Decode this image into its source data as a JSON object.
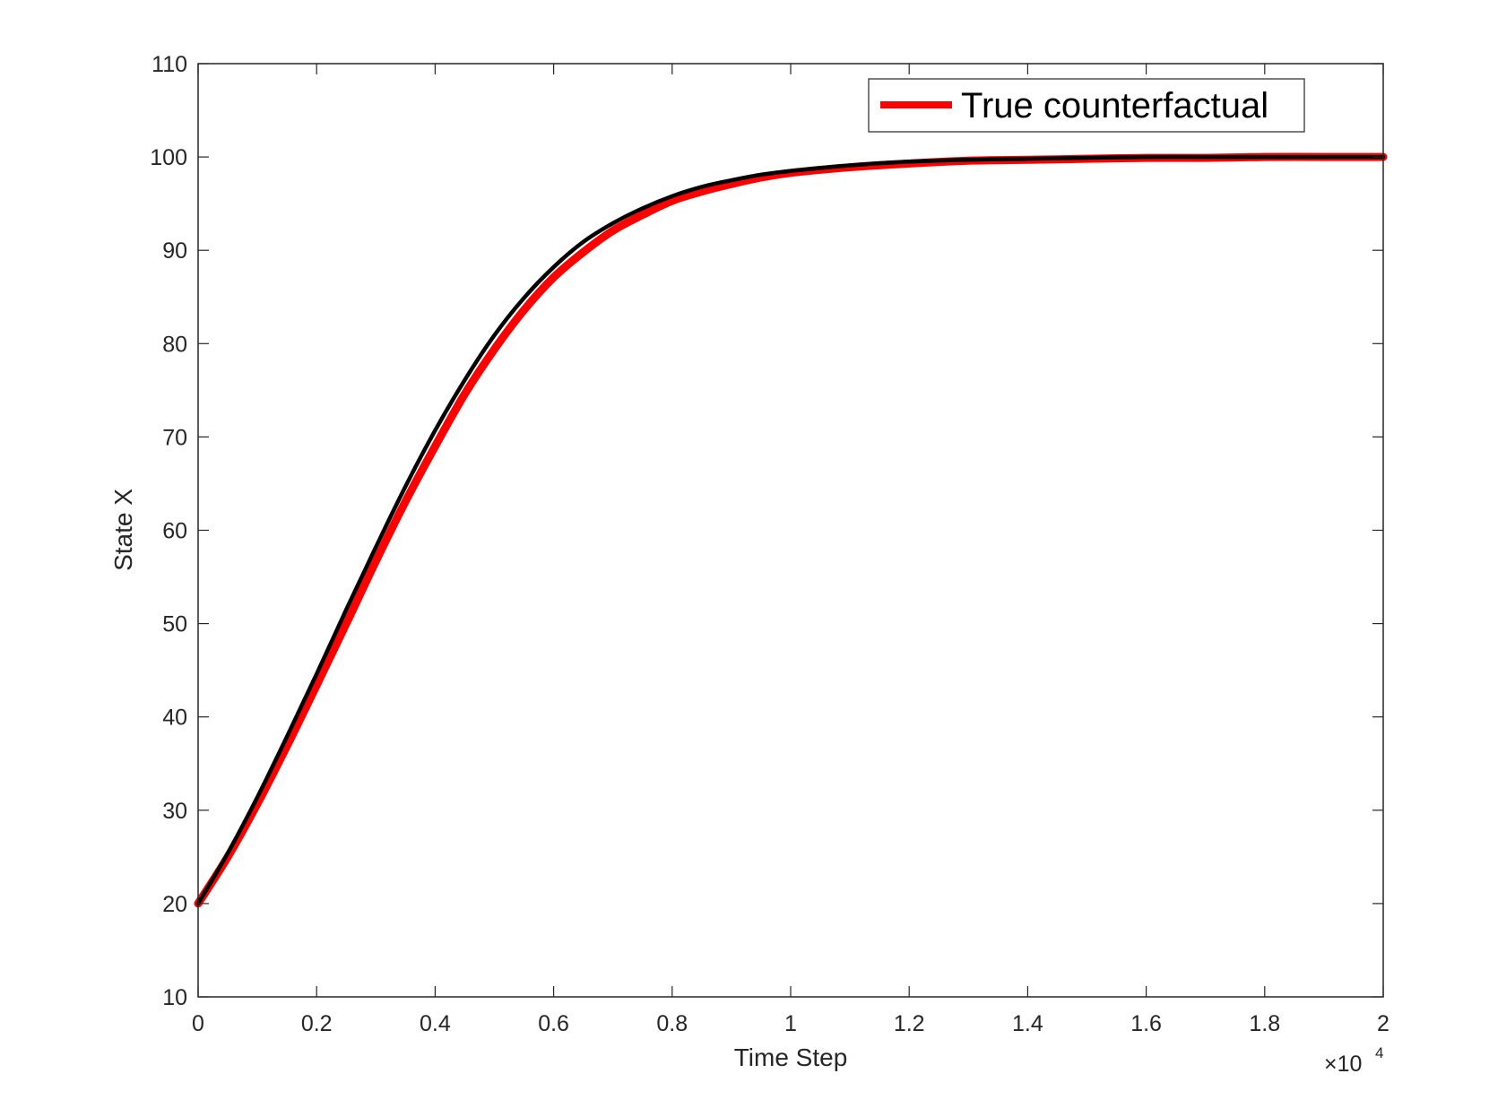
{
  "chart_data": {
    "type": "line",
    "title": "",
    "xlabel": "Time Step",
    "ylabel": "State X",
    "xlim": [
      0,
      20000
    ],
    "ylim": [
      10,
      110
    ],
    "x_ticks": [
      0,
      2000,
      4000,
      6000,
      8000,
      10000,
      12000,
      14000,
      16000,
      18000,
      20000
    ],
    "x_tick_labels": [
      "0",
      "0.2",
      "0.4",
      "0.6",
      "0.8",
      "1",
      "1.2",
      "1.4",
      "1.6",
      "1.8",
      "2"
    ],
    "x_exponent_label": "×10",
    "x_exponent_power": "4",
    "y_ticks": [
      10,
      20,
      30,
      40,
      50,
      60,
      70,
      80,
      90,
      100,
      110
    ],
    "y_tick_labels": [
      "10",
      "20",
      "30",
      "40",
      "50",
      "60",
      "70",
      "80",
      "90",
      "100",
      "110"
    ],
    "grid": false,
    "legend_position": "top-right",
    "series": [
      {
        "name": "True counterfactual",
        "color": "#ff0000",
        "in_legend": true,
        "x": [
          0,
          500,
          1000,
          1500,
          2000,
          2500,
          3000,
          3500,
          4000,
          4500,
          5000,
          5500,
          6000,
          6500,
          7000,
          7500,
          8000,
          8500,
          9000,
          9500,
          10000,
          11000,
          12000,
          13000,
          14000,
          15000,
          16000,
          17000,
          18000,
          19000,
          20000
        ],
        "y": [
          20.0,
          25.0,
          30.7,
          36.9,
          43.4,
          50.0,
          56.7,
          63.1,
          69.0,
          74.6,
          79.4,
          83.6,
          87.1,
          89.8,
          92.1,
          93.8,
          95.3,
          96.3,
          97.1,
          97.8,
          98.3,
          98.9,
          99.3,
          99.6,
          99.7,
          99.8,
          99.9,
          99.9,
          100.0,
          100.0,
          100.0
        ]
      },
      {
        "name": "",
        "color": "#000000",
        "in_legend": false,
        "x": [
          0,
          500,
          1000,
          1500,
          2000,
          2500,
          3000,
          3500,
          4000,
          4500,
          5000,
          5500,
          6000,
          6500,
          7000,
          7500,
          8000,
          8500,
          9000,
          9500,
          10000,
          11000,
          12000,
          13000,
          14000,
          15000,
          16000,
          17000,
          18000,
          19000,
          20000
        ],
        "y": [
          20.0,
          25.4,
          31.4,
          37.9,
          44.6,
          51.5,
          58.2,
          64.7,
          70.7,
          76.1,
          80.9,
          84.9,
          88.2,
          90.9,
          92.9,
          94.5,
          95.8,
          96.8,
          97.5,
          98.1,
          98.5,
          99.1,
          99.5,
          99.7,
          99.8,
          99.9,
          100.0,
          100.0,
          100.0,
          100.0,
          100.0
        ]
      }
    ]
  }
}
